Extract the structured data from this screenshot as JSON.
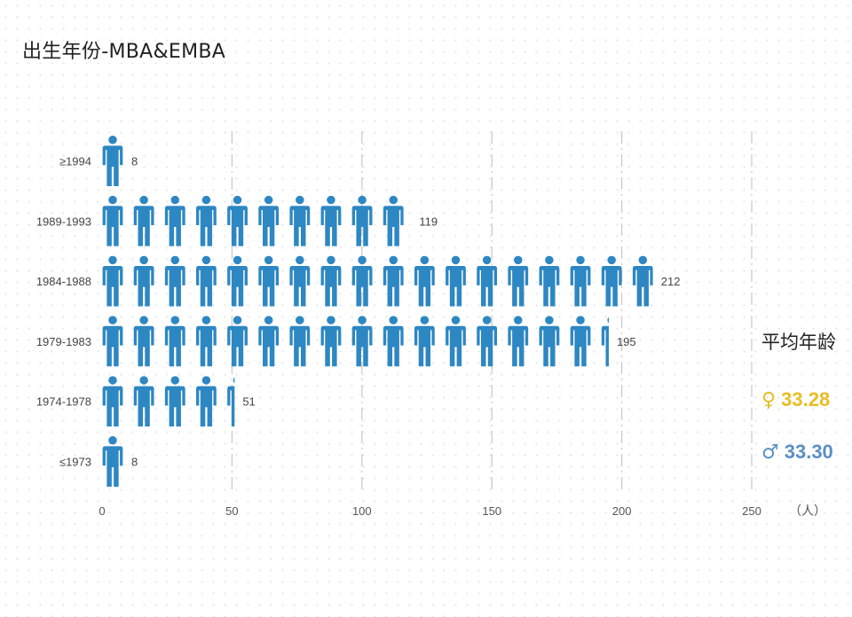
{
  "title": "出生年份-MBA&EMBA",
  "chart_data": {
    "type": "bar",
    "orientation": "horizontal",
    "mark": "person-icon",
    "title": "出生年份-MBA&EMBA",
    "categories": [
      "≥1994",
      "1989-1993",
      "1984-1988",
      "1979-1983",
      "1974-1978",
      "≤1973"
    ],
    "values": [
      8,
      119,
      212,
      195,
      51,
      8
    ],
    "xlabel": "（人）",
    "ylabel": "",
    "xlim": [
      0,
      250
    ],
    "xticks": [
      0,
      50,
      100,
      150,
      200,
      250
    ],
    "grid": "vertical dashed",
    "icon_color": "#2d87c3"
  },
  "average_age": {
    "title": "平均年龄",
    "female": {
      "symbol": "♀",
      "value": "33.28",
      "color": "#e9bd24"
    },
    "male": {
      "symbol": "♂",
      "value": "33.30",
      "color": "#5c8fc2"
    }
  }
}
